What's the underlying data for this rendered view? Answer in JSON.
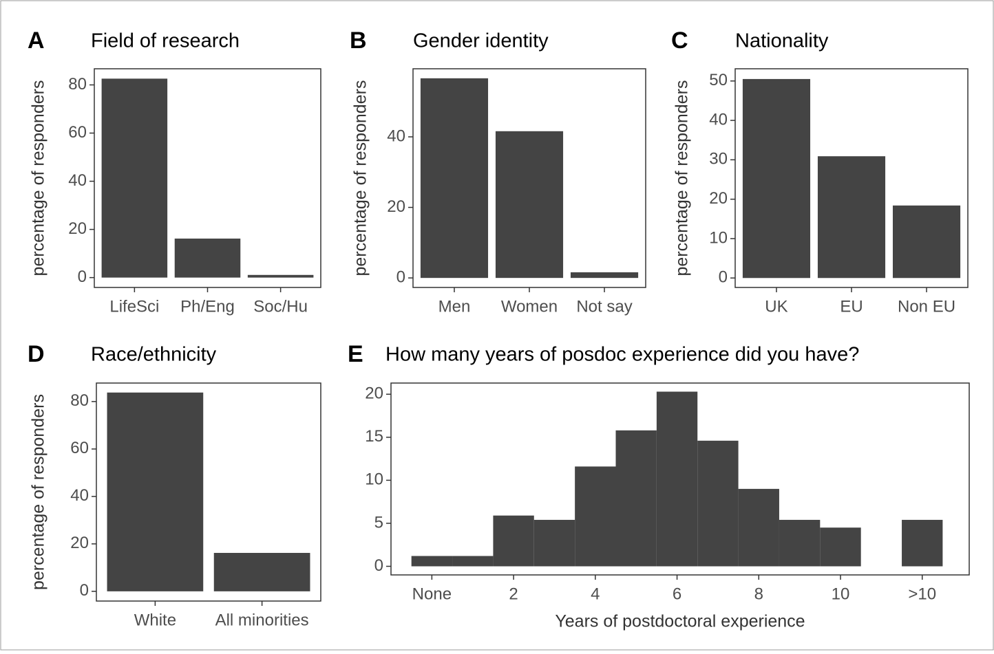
{
  "chart_data": [
    {
      "type": "bar",
      "panel": "A",
      "title": "Field of research",
      "ylabel": "percentage of responders",
      "categories": [
        "LifeSci",
        "Ph/Eng",
        "Soc/Hu"
      ],
      "values": [
        82.6,
        16.2,
        1.1
      ],
      "color": "#444444",
      "ylim": [
        -4.1,
        86.7
      ],
      "yticks": [
        0,
        20,
        40,
        60,
        80
      ]
    },
    {
      "type": "bar",
      "panel": "B",
      "title": "Gender identity",
      "ylabel": "percentage of responders",
      "categories": [
        "Men",
        "Women",
        "Not say"
      ],
      "values": [
        56.6,
        41.6,
        1.6
      ],
      "color": "#444444",
      "ylim": [
        -2.7,
        59.3
      ],
      "yticks": [
        0,
        20,
        40
      ]
    },
    {
      "type": "bar",
      "panel": "C",
      "title": "Nationality",
      "ylabel": "percentage of responders",
      "categories": [
        "UK",
        "EU",
        "Non EU"
      ],
      "values": [
        50.5,
        30.9,
        18.4
      ],
      "color": "#444444",
      "ylim": [
        -2.4,
        53.1
      ],
      "yticks": [
        0,
        10,
        20,
        30,
        40,
        50
      ]
    },
    {
      "type": "bar",
      "panel": "D",
      "title": "Race/ethnicity",
      "ylabel": "percentage of responders",
      "categories": [
        "White",
        "All minorities"
      ],
      "values": [
        83.8,
        16.2
      ],
      "color": "#444444",
      "ylim": [
        -4.1,
        87.8
      ],
      "yticks": [
        0,
        20,
        40,
        60,
        80
      ]
    },
    {
      "type": "histogram",
      "panel": "E",
      "title": "How many years of posdoc experience did you have?",
      "xlabel": "Years of postdoctoral experience",
      "bins": [
        -0.5,
        0.5,
        1.5,
        2.5,
        3.5,
        4.5,
        5.5,
        6.5,
        7.5,
        8.5,
        9.5,
        10.5,
        11.5,
        12.5
      ],
      "values": [
        1.2,
        1.2,
        5.9,
        5.4,
        11.6,
        15.8,
        20.3,
        14.6,
        9.0,
        5.4,
        4.5,
        0,
        5.4
      ],
      "color": "#444444",
      "xlim": [
        -1.0,
        13.15
      ],
      "xticks": [
        {
          "value": 0,
          "label": "None"
        },
        2,
        4,
        6,
        8,
        10,
        {
          "value": 12,
          "label": ">10"
        }
      ],
      "ylim": [
        -1.0,
        21.3
      ],
      "yticks": [
        0,
        5,
        10,
        15,
        20
      ]
    }
  ]
}
